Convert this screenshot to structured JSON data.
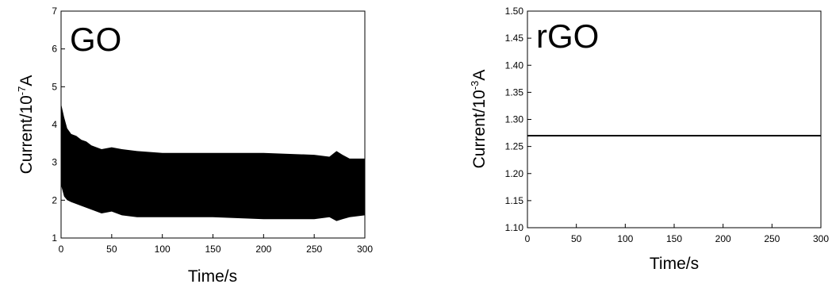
{
  "chart_data": [
    {
      "type": "area",
      "title": "GO",
      "xlabel": "Time/s",
      "ylabel_main": "Current/10",
      "ylabel_sup": "-7",
      "ylabel_unit": "A",
      "xlim": [
        0,
        300
      ],
      "ylim": [
        1,
        7
      ],
      "xticks": [
        "0",
        "50",
        "100",
        "150",
        "200",
        "250",
        "300"
      ],
      "yticks": [
        "1",
        "2",
        "3",
        "4",
        "5",
        "6",
        "7"
      ],
      "grid": false,
      "fill_color": "#000000",
      "envelope": {
        "x": [
          0,
          3,
          6,
          10,
          15,
          20,
          25,
          30,
          40,
          50,
          60,
          75,
          100,
          150,
          200,
          250,
          265,
          272,
          278,
          285,
          300
        ],
        "upper": [
          4.55,
          4.2,
          3.9,
          3.75,
          3.7,
          3.6,
          3.55,
          3.45,
          3.35,
          3.4,
          3.35,
          3.3,
          3.25,
          3.25,
          3.25,
          3.2,
          3.15,
          3.3,
          3.2,
          3.1,
          3.1
        ],
        "lower": [
          2.4,
          2.1,
          2.0,
          1.95,
          1.9,
          1.85,
          1.8,
          1.75,
          1.65,
          1.7,
          1.6,
          1.55,
          1.55,
          1.55,
          1.5,
          1.5,
          1.55,
          1.45,
          1.5,
          1.55,
          1.6
        ]
      }
    },
    {
      "type": "line",
      "title": "rGO",
      "xlabel": "Time/s",
      "ylabel_main": "Current/10",
      "ylabel_sup": "-3",
      "ylabel_unit": "A",
      "xlim": [
        0,
        300
      ],
      "ylim": [
        1.1,
        1.5
      ],
      "xticks": [
        "0",
        "50",
        "100",
        "150",
        "200",
        "250",
        "300"
      ],
      "yticks": [
        "1.10",
        "1.15",
        "1.20",
        "1.25",
        "1.30",
        "1.35",
        "1.40",
        "1.45",
        "1.50"
      ],
      "grid": false,
      "line_color": "#000000",
      "x": [
        0,
        300
      ],
      "y": [
        1.27,
        1.27
      ]
    }
  ]
}
